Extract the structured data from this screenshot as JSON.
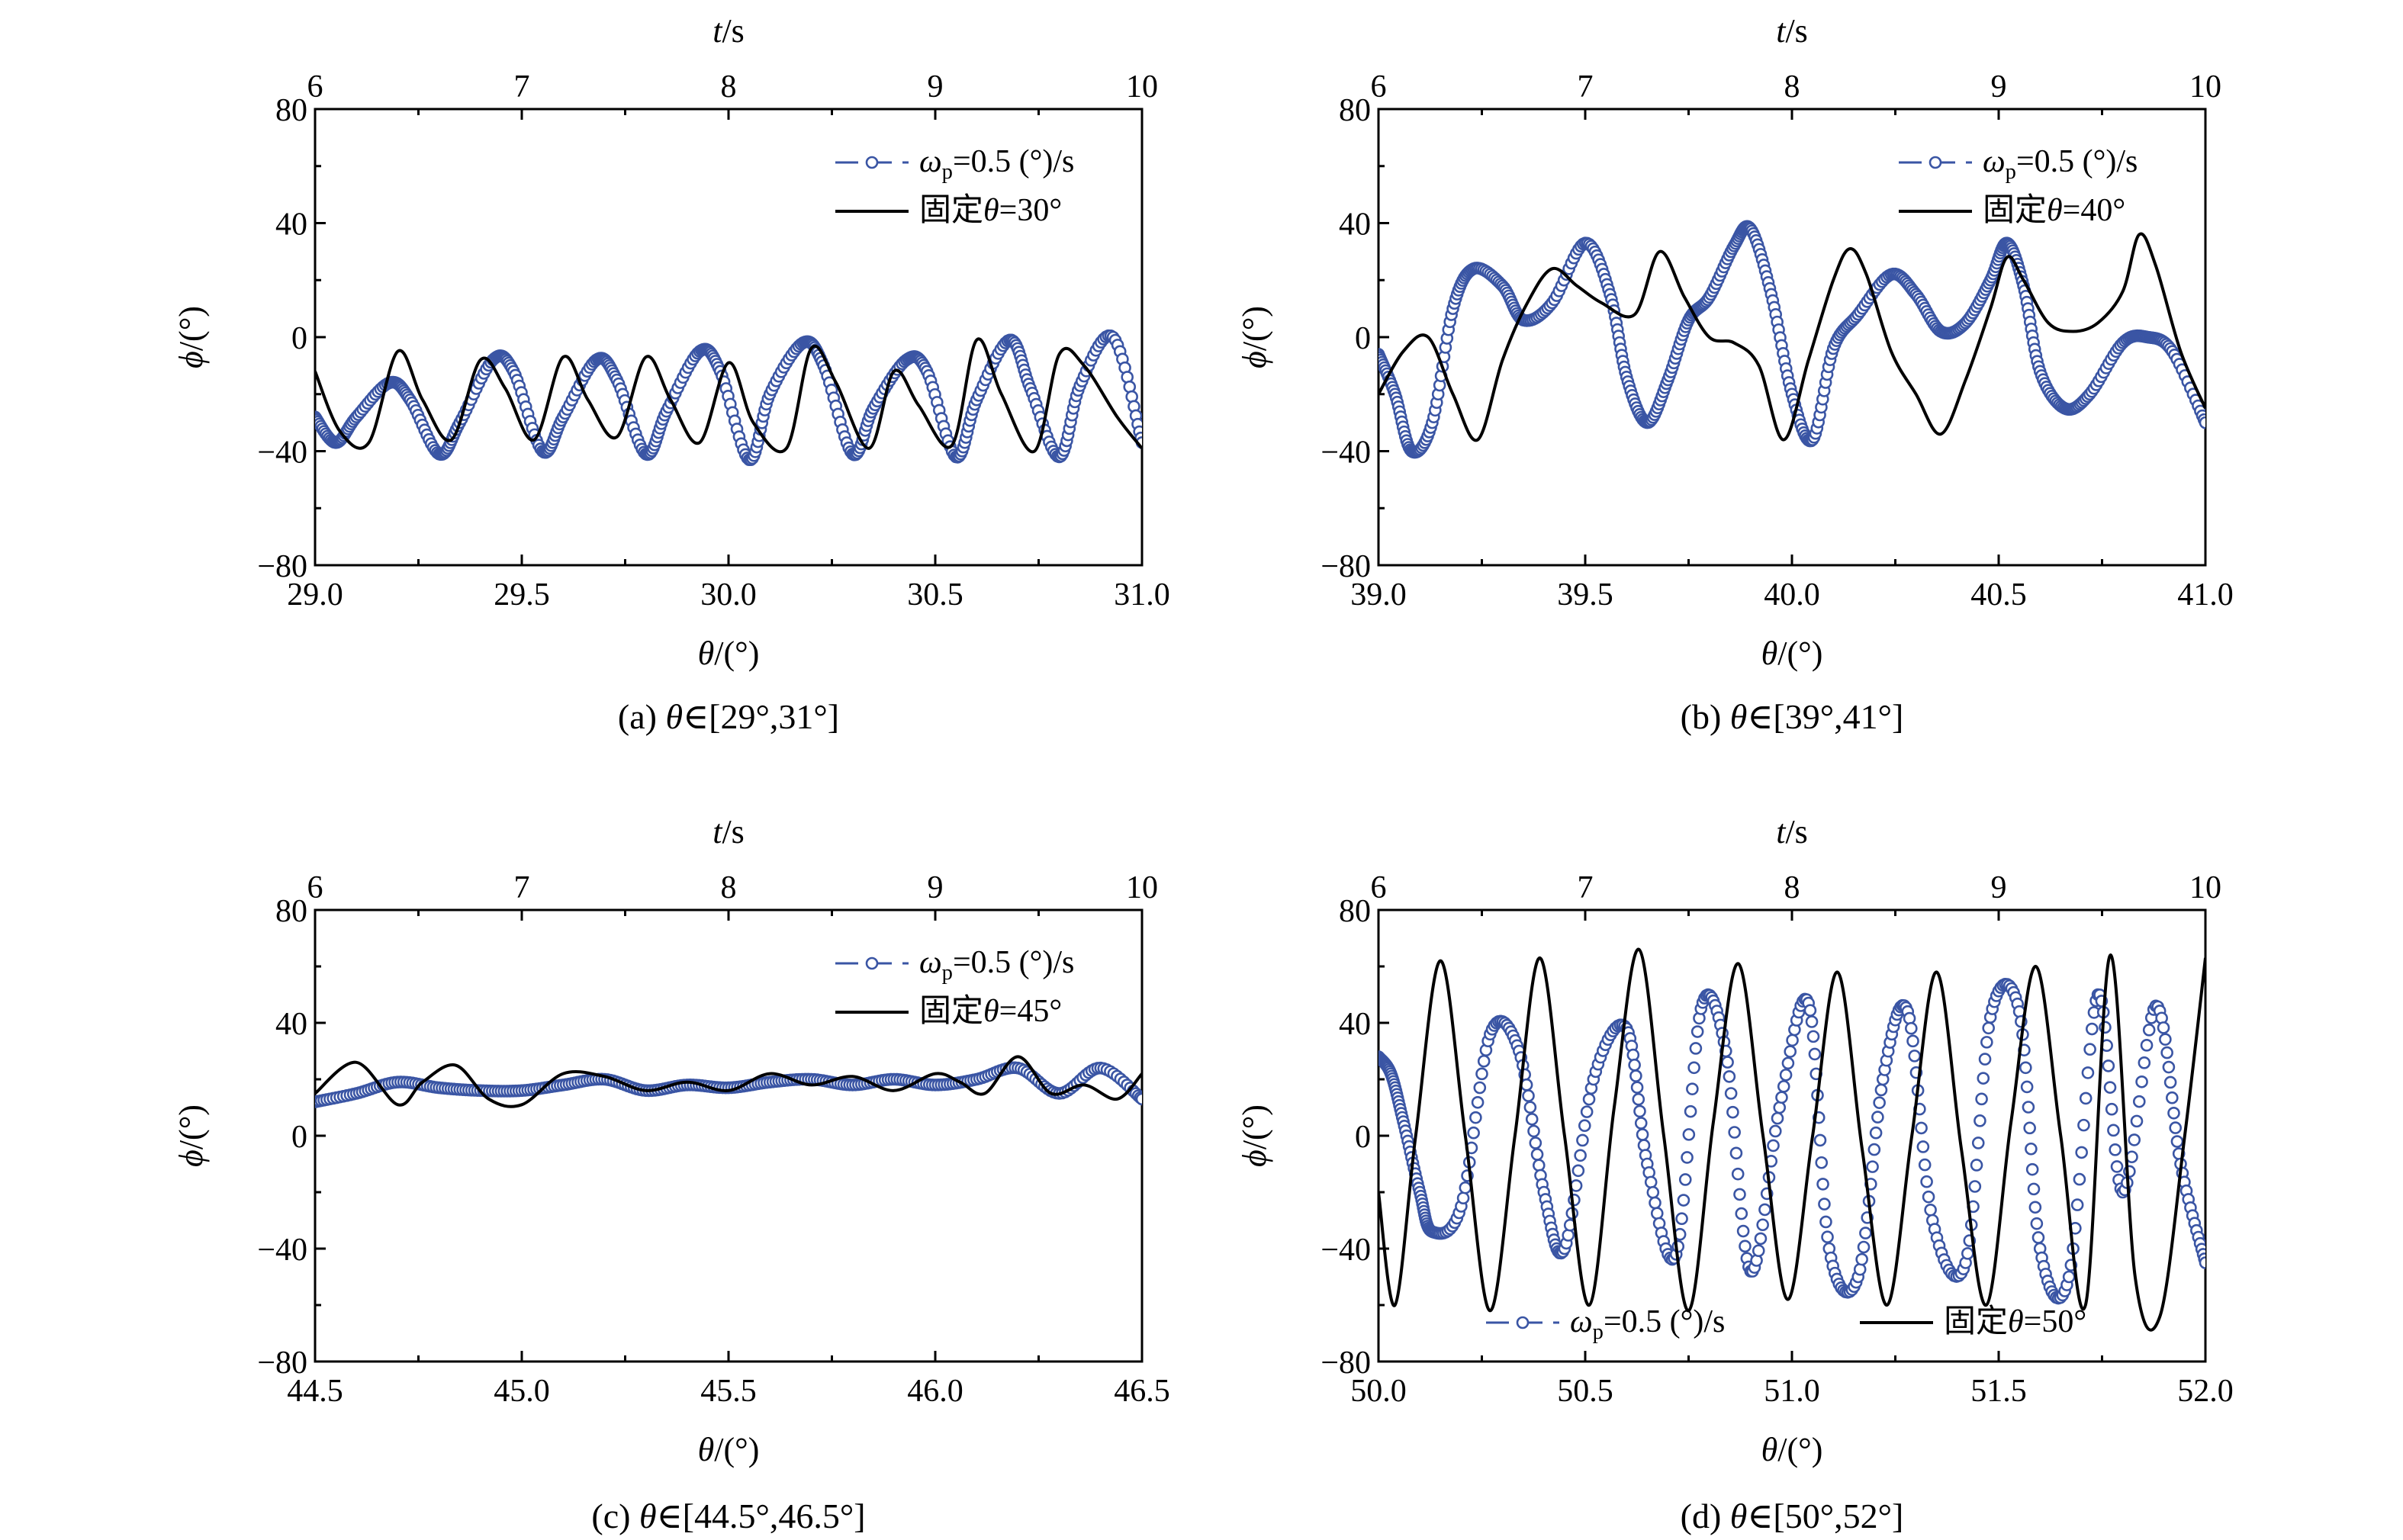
{
  "chart_data": [
    {
      "type": "line",
      "caption": "(a) θ∈[29°,31°]",
      "xlabel": "θ/(°)",
      "ylabel": "ϕ/(°)",
      "top_xlabel": "t/s",
      "xlim": [
        29.0,
        31.0
      ],
      "ylim": [
        -80,
        80
      ],
      "top_xlim": [
        6,
        10
      ],
      "x_ticks": [
        "29.0",
        "29.5",
        "30.0",
        "30.5",
        "31.0"
      ],
      "y_ticks": [
        "80",
        "40",
        "0",
        "−40",
        "−80"
      ],
      "top_ticks": [
        "6",
        "7",
        "8",
        "9",
        "10"
      ],
      "legend_position": "top-right",
      "series": [
        {
          "name": "ωp=0.5 (°)/s",
          "style": "circle-markers",
          "color": "#3a55a4",
          "x": [
            29.0,
            29.05,
            29.1,
            29.18,
            29.23,
            29.3,
            29.35,
            29.43,
            29.48,
            29.55,
            29.6,
            29.68,
            29.73,
            29.8,
            29.85,
            29.93,
            29.98,
            30.05,
            30.1,
            30.18,
            30.23,
            30.3,
            30.35,
            30.43,
            30.48,
            30.55,
            30.6,
            30.68,
            30.73,
            30.8,
            30.85,
            30.93,
            31.0
          ],
          "y": [
            -28,
            -37,
            -28,
            -16,
            -22,
            -41,
            -30,
            -8,
            -12,
            -40,
            -28,
            -8,
            -15,
            -41,
            -26,
            -5,
            -12,
            -43,
            -20,
            -2,
            -10,
            -41,
            -25,
            -8,
            -12,
            -42,
            -22,
            -1,
            -18,
            -42,
            -17,
            0,
            -37
          ]
        },
        {
          "name": "固定θ=30°",
          "style": "line",
          "color": "#000000",
          "x": [
            29.0,
            29.06,
            29.13,
            29.2,
            29.26,
            29.33,
            29.4,
            29.46,
            29.53,
            29.6,
            29.66,
            29.73,
            29.8,
            29.86,
            29.93,
            30.0,
            30.06,
            30.14,
            30.2,
            30.26,
            30.34,
            30.4,
            30.46,
            30.54,
            30.6,
            30.66,
            30.74,
            30.8,
            30.86,
            30.94,
            31.0
          ],
          "y": [
            -12,
            -33,
            -37,
            -5,
            -22,
            -36,
            -8,
            -18,
            -36,
            -7,
            -22,
            -35,
            -7,
            -22,
            -37,
            -9,
            -30,
            -39,
            -4,
            -16,
            -39,
            -12,
            -24,
            -38,
            -1,
            -20,
            -40,
            -6,
            -10,
            -28,
            -39
          ]
        }
      ]
    },
    {
      "type": "line",
      "caption": "(b) θ∈[39°,41°]",
      "xlabel": "θ/(°)",
      "ylabel": "ϕ/(°)",
      "top_xlabel": "t/s",
      "xlim": [
        39.0,
        41.0
      ],
      "ylim": [
        -80,
        80
      ],
      "top_xlim": [
        6,
        10
      ],
      "x_ticks": [
        "39.0",
        "39.5",
        "40.0",
        "40.5",
        "41.0"
      ],
      "y_ticks": [
        "80",
        "40",
        "0",
        "−40",
        "−80"
      ],
      "top_ticks": [
        "6",
        "7",
        "8",
        "9",
        "10"
      ],
      "legend_position": "top-right",
      "series": [
        {
          "name": "ωp=0.5 (°)/s",
          "style": "circle-markers",
          "color": "#3a55a4",
          "x": [
            39.0,
            39.04,
            39.08,
            39.13,
            39.18,
            39.23,
            39.3,
            39.35,
            39.42,
            39.5,
            39.56,
            39.6,
            39.65,
            39.7,
            39.75,
            39.8,
            39.86,
            39.9,
            39.95,
            40.0,
            40.05,
            40.1,
            40.16,
            40.24,
            40.3,
            40.36,
            40.42,
            40.48,
            40.52,
            40.56,
            40.6,
            40.66,
            40.72,
            40.8,
            40.86,
            40.92,
            41.0
          ],
          "y": [
            -6,
            -20,
            -40,
            -30,
            10,
            24,
            18,
            6,
            12,
            33,
            15,
            -14,
            -30,
            -15,
            6,
            14,
            32,
            38,
            15,
            -20,
            -36,
            -4,
            8,
            22,
            15,
            2,
            5,
            20,
            33,
            18,
            -12,
            -25,
            -20,
            -2,
            0,
            -5,
            -30
          ]
        },
        {
          "name": "固定θ=40°",
          "style": "line",
          "color": "#000000",
          "x": [
            39.0,
            39.06,
            39.12,
            39.18,
            39.24,
            39.3,
            39.36,
            39.42,
            39.48,
            39.54,
            39.62,
            39.68,
            39.74,
            39.8,
            39.86,
            39.92,
            39.98,
            40.04,
            40.1,
            40.14,
            40.18,
            40.24,
            40.3,
            40.36,
            40.42,
            40.48,
            40.52,
            40.56,
            40.62,
            40.68,
            40.74,
            40.8,
            40.84,
            40.88,
            40.94,
            41.0
          ],
          "y": [
            -20,
            -5,
            0,
            -20,
            -36,
            -8,
            12,
            24,
            18,
            12,
            8,
            30,
            14,
            0,
            -2,
            -10,
            -36,
            -8,
            20,
            31,
            22,
            -5,
            -20,
            -34,
            -15,
            10,
            28,
            20,
            5,
            2,
            5,
            16,
            36,
            25,
            -5,
            -25
          ]
        }
      ]
    },
    {
      "type": "line",
      "caption": "(c) θ∈[44.5°,46.5°]",
      "xlabel": "θ/(°)",
      "ylabel": "ϕ/(°)",
      "top_xlabel": "t/s",
      "xlim": [
        44.5,
        46.5
      ],
      "ylim": [
        -80,
        80
      ],
      "top_xlim": [
        6,
        10
      ],
      "x_ticks": [
        "44.5",
        "45.0",
        "45.5",
        "46.0",
        "46.5"
      ],
      "y_ticks": [
        "80",
        "40",
        "0",
        "−40",
        "−80"
      ],
      "top_ticks": [
        "6",
        "7",
        "8",
        "9",
        "10"
      ],
      "legend_position": "top-right",
      "series": [
        {
          "name": "ωp=0.5 (°)/s",
          "style": "circle-markers",
          "color": "#3a55a4",
          "x": [
            44.5,
            44.6,
            44.7,
            44.8,
            44.9,
            45.0,
            45.1,
            45.2,
            45.3,
            45.4,
            45.5,
            45.6,
            45.7,
            45.8,
            45.9,
            46.0,
            46.1,
            46.2,
            46.3,
            46.4,
            46.5
          ],
          "y": [
            12,
            15,
            19,
            17,
            16,
            16,
            18,
            20,
            16,
            18,
            17,
            19,
            20,
            18,
            20,
            18,
            20,
            24,
            15,
            24,
            13
          ]
        },
        {
          "name": "固定θ=45°",
          "style": "line",
          "color": "#000000",
          "x": [
            44.5,
            44.6,
            44.7,
            44.76,
            44.84,
            44.92,
            45.0,
            45.1,
            45.2,
            45.3,
            45.4,
            45.5,
            45.6,
            45.7,
            45.8,
            45.9,
            46.0,
            46.06,
            46.12,
            46.2,
            46.28,
            46.36,
            46.44,
            46.5
          ],
          "y": [
            15,
            26,
            11,
            19,
            25,
            13,
            11,
            22,
            21,
            16,
            19,
            16,
            22,
            18,
            21,
            16,
            22,
            19,
            15,
            28,
            15,
            18,
            13,
            22
          ]
        }
      ]
    },
    {
      "type": "line",
      "caption": "(d) θ∈[50°,52°]",
      "xlabel": "θ/(°)",
      "ylabel": "ϕ/(°)",
      "top_xlabel": "t/s",
      "xlim": [
        50.0,
        52.0
      ],
      "ylim": [
        -80,
        80
      ],
      "top_xlim": [
        6,
        10
      ],
      "x_ticks": [
        "50.0",
        "50.5",
        "51.0",
        "51.5",
        "52.0"
      ],
      "y_ticks": [
        "80",
        "40",
        "0",
        "−40",
        "−80"
      ],
      "top_ticks": [
        "6",
        "7",
        "8",
        "9",
        "10"
      ],
      "legend_position": "bottom",
      "series": [
        {
          "name": "ωp=0.5 (°)/s",
          "style": "circle-markers",
          "color": "#3a55a4",
          "x": [
            50.0,
            50.03,
            50.06,
            50.1,
            50.13,
            50.2,
            50.27,
            50.34,
            50.4,
            50.45,
            50.52,
            50.6,
            50.65,
            50.72,
            50.78,
            50.84,
            50.9,
            50.97,
            51.04,
            51.09,
            51.16,
            51.22,
            51.28,
            51.34,
            51.42,
            51.48,
            51.55,
            51.6,
            51.67,
            51.74,
            51.8,
            51.88,
            51.94,
            52.0
          ],
          "y": [
            28,
            22,
            5,
            -20,
            -34,
            -25,
            36,
            30,
            -20,
            -40,
            20,
            38,
            -10,
            -42,
            45,
            30,
            -48,
            10,
            47,
            -40,
            -50,
            20,
            44,
            -30,
            -45,
            42,
            44,
            -40,
            -50,
            50,
            -20,
            46,
            -10,
            -45
          ]
        },
        {
          "name": "固定θ=50°",
          "style": "line",
          "color": "#000000",
          "x": [
            50.0,
            50.04,
            50.09,
            50.15,
            50.21,
            50.27,
            50.33,
            50.39,
            50.45,
            50.51,
            50.57,
            50.63,
            50.69,
            50.75,
            50.81,
            50.87,
            50.93,
            50.99,
            51.05,
            51.11,
            51.17,
            51.23,
            51.29,
            51.35,
            51.41,
            51.47,
            51.53,
            51.59,
            51.65,
            51.71,
            51.77,
            51.83,
            51.89,
            51.95,
            52.0
          ],
          "y": [
            -20,
            -60,
            0,
            62,
            0,
            -62,
            0,
            63,
            0,
            -60,
            10,
            66,
            0,
            -62,
            5,
            61,
            0,
            -58,
            0,
            58,
            -5,
            -60,
            0,
            58,
            -5,
            -60,
            5,
            60,
            0,
            -60,
            64,
            -50,
            -64,
            0,
            63
          ]
        }
      ]
    }
  ],
  "legend": {
    "marker_label_main": "ω",
    "marker_label_sub": "p",
    "marker_label_rest": "=0.5 (°)/s",
    "line_label_prefix": "固定",
    "line_label_theta": "θ",
    "line_label_values": [
      "=30°",
      "=40°",
      "=45°",
      "=50°"
    ]
  },
  "colors": {
    "marker": "#3a55a4",
    "line": "#000000",
    "axes": "#000000"
  }
}
